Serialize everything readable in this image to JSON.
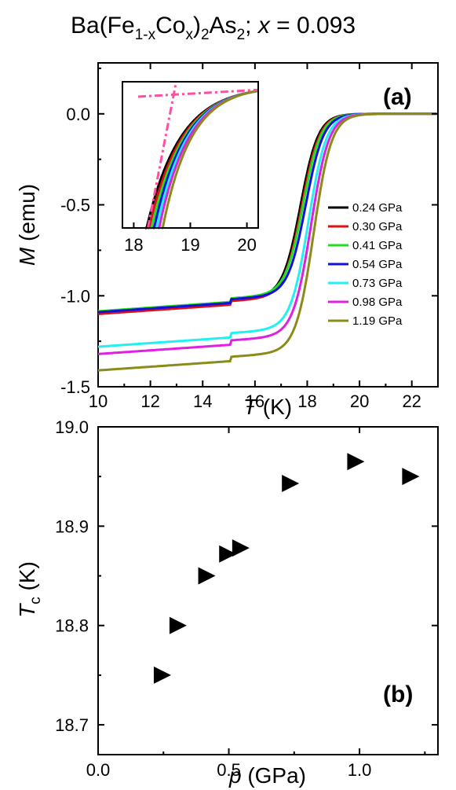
{
  "figure": {
    "title": {
      "prefix": "Ba(Fe",
      "sub1": "1-x",
      "mid1": "Co",
      "sub2": "x",
      "mid2": ")",
      "sub3": "2",
      "mid3": "As",
      "sub4": "2",
      "mid4": "; ",
      "var": "x",
      "suffix": " = 0.093"
    }
  },
  "chart_data": [
    {
      "type": "line",
      "panel_label": "(a)",
      "xlabel_var": "T",
      "xlabel_unit": " (K)",
      "ylabel_var": "M",
      "ylabel_unit": " (emu)",
      "xlim": [
        10,
        23
      ],
      "ylim": [
        -1.5,
        0.28
      ],
      "xticks": [
        "10",
        "12",
        "14",
        "16",
        "18",
        "20",
        "22"
      ],
      "yticks": [
        "-1.5",
        "-1.0",
        "-0.5",
        "0.0"
      ],
      "legend_position": "center-right",
      "series": [
        {
          "name": "0.24 GPa",
          "color": "#000000",
          "low": -1.095,
          "step": 0.05,
          "mid": 17.75,
          "width": 0.34,
          "shift": 0.0
        },
        {
          "name": "0.30 GPa",
          "color": "#e01010",
          "low": -1.1,
          "step": 0.05,
          "mid": 17.8,
          "width": 0.34,
          "shift": 0.05
        },
        {
          "name": "0.41 GPa",
          "color": "#22dd22",
          "low": -1.085,
          "step": 0.05,
          "mid": 17.85,
          "width": 0.34,
          "shift": 0.1
        },
        {
          "name": "0.54 GPa",
          "color": "#1010e0",
          "low": -1.09,
          "step": 0.05,
          "mid": 17.95,
          "width": 0.34,
          "shift": 0.15
        },
        {
          "name": "0.73 GPa",
          "color": "#22f0f0",
          "low": -1.28,
          "step": 0.06,
          "mid": 18.05,
          "width": 0.34,
          "shift": 0.2
        },
        {
          "name": "0.98 GPa",
          "color": "#e020e0",
          "low": -1.32,
          "step": 0.06,
          "mid": 18.15,
          "width": 0.34,
          "shift": 0.25
        },
        {
          "name": "1.19 GPa",
          "color": "#8b8b1a",
          "low": -1.41,
          "step": 0.06,
          "mid": 18.25,
          "width": 0.34,
          "shift": 0.32
        }
      ],
      "inset": {
        "xlim": [
          17.8,
          20.2
        ],
        "ylim": [
          -1.0,
          0.08
        ],
        "xticks": [
          "18",
          "19",
          "20"
        ],
        "guide_color": "#ff4fa0"
      }
    },
    {
      "type": "scatter",
      "panel_label": "(b)",
      "xlabel_var": "p",
      "xlabel_unit": " (GPa)",
      "ylabel_var": "T",
      "ylabel_sub": "c",
      "ylabel_unit": " (K)",
      "xlim": [
        0.0,
        1.3
      ],
      "ylim": [
        18.67,
        19.0
      ],
      "xticks": [
        "0.0",
        "0.5",
        "1.0"
      ],
      "yticks": [
        "18.7",
        "18.8",
        "18.9",
        "19.0"
      ],
      "marker": "right-triangle",
      "x": [
        0.24,
        0.3,
        0.41,
        0.49,
        0.54,
        0.73,
        0.98,
        1.19
      ],
      "y": [
        18.75,
        18.8,
        18.85,
        18.872,
        18.878,
        18.943,
        18.965,
        18.95
      ]
    }
  ]
}
